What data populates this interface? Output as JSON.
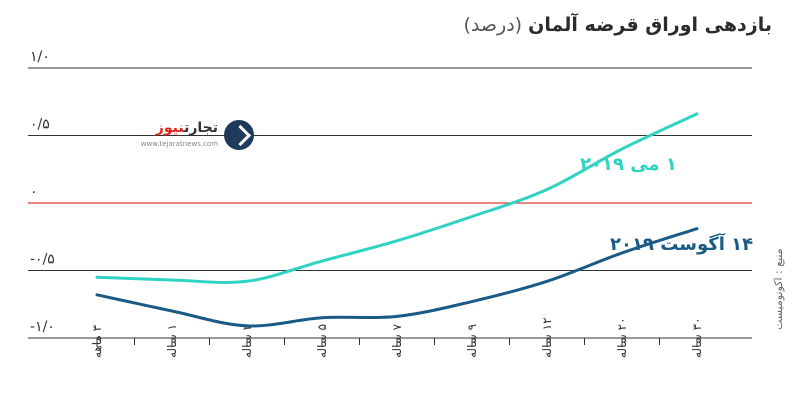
{
  "title": "بازدهی اوراق قرضه آلمان",
  "title_unit": "(درصد)",
  "source": "منبع : اکونومیست",
  "logo": {
    "name_dark": "تجارت",
    "name_accent": "نیوز",
    "url": "www.tejaratnews.com",
    "icon": "arrow-badge-icon"
  },
  "colors": {
    "may": "#2ed3c2",
    "aug": "#1a5a86",
    "zero_line": "#e23b3b",
    "grid": "#333333"
  },
  "chart_data": {
    "type": "line",
    "title": "بازدهی اوراق قرضه آلمان (درصد)",
    "xlabel": "",
    "ylabel": "",
    "ylim": [
      -1.0,
      1.0
    ],
    "grid": true,
    "yticks": [
      {
        "value": 1.0,
        "label": "۱/۰"
      },
      {
        "value": 0.5,
        "label": "۰/۵"
      },
      {
        "value": 0.0,
        "label": "۰"
      },
      {
        "value": -0.5,
        "label": "-۰/۵"
      },
      {
        "value": -1.0,
        "label": "-۱/۰"
      }
    ],
    "categories": [
      "۳ ماهه",
      "۱ ساله",
      "۳ ساله",
      "۵ ساله",
      "۷ ساله",
      "۹ ساله",
      "۱۲ ساله",
      "۲۰ ساله",
      "۳۰ ساله"
    ],
    "series": [
      {
        "name": "۱ می ۲۰۱۹",
        "color_key": "may",
        "values": [
          -0.55,
          -0.57,
          -0.58,
          -0.43,
          -0.28,
          -0.1,
          0.1,
          0.4,
          0.66
        ]
      },
      {
        "name": "۱۴ آگوست ۲۰۱۹",
        "color_key": "aug",
        "values": [
          -0.68,
          -0.8,
          -0.91,
          -0.85,
          -0.84,
          -0.73,
          -0.58,
          -0.37,
          -0.19
        ]
      }
    ]
  }
}
